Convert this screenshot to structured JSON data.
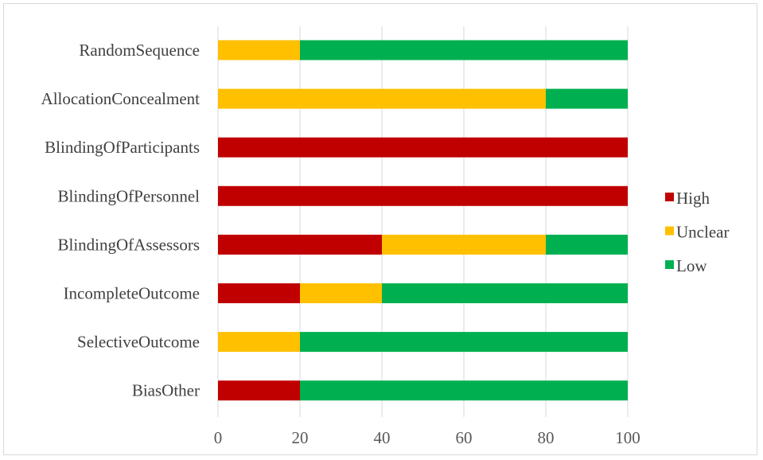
{
  "chart_data": {
    "type": "bar",
    "orientation": "horizontal",
    "stacked": true,
    "categories": [
      "RandomSequence",
      "AllocationConcealment",
      "BlindingOfParticipants",
      "BlindingOfPersonnel",
      "BlindingOfAssessors",
      "IncompleteOutcome",
      "SelectiveOutcome",
      "BiasOther"
    ],
    "series": [
      {
        "name": "High",
        "color": "#c00000",
        "values": [
          0,
          0,
          100,
          100,
          40,
          20,
          0,
          20
        ]
      },
      {
        "name": "Unclear",
        "color": "#ffc000",
        "values": [
          20,
          80,
          0,
          0,
          40,
          20,
          20,
          0
        ]
      },
      {
        "name": "Low",
        "color": "#00b050",
        "values": [
          80,
          20,
          0,
          0,
          20,
          60,
          80,
          80
        ]
      }
    ],
    "xlim": [
      0,
      100
    ],
    "xticks": [
      "0",
      "20",
      "40",
      "60",
      "80",
      "100"
    ],
    "gridlines": "vertical",
    "legend_position": "right"
  }
}
